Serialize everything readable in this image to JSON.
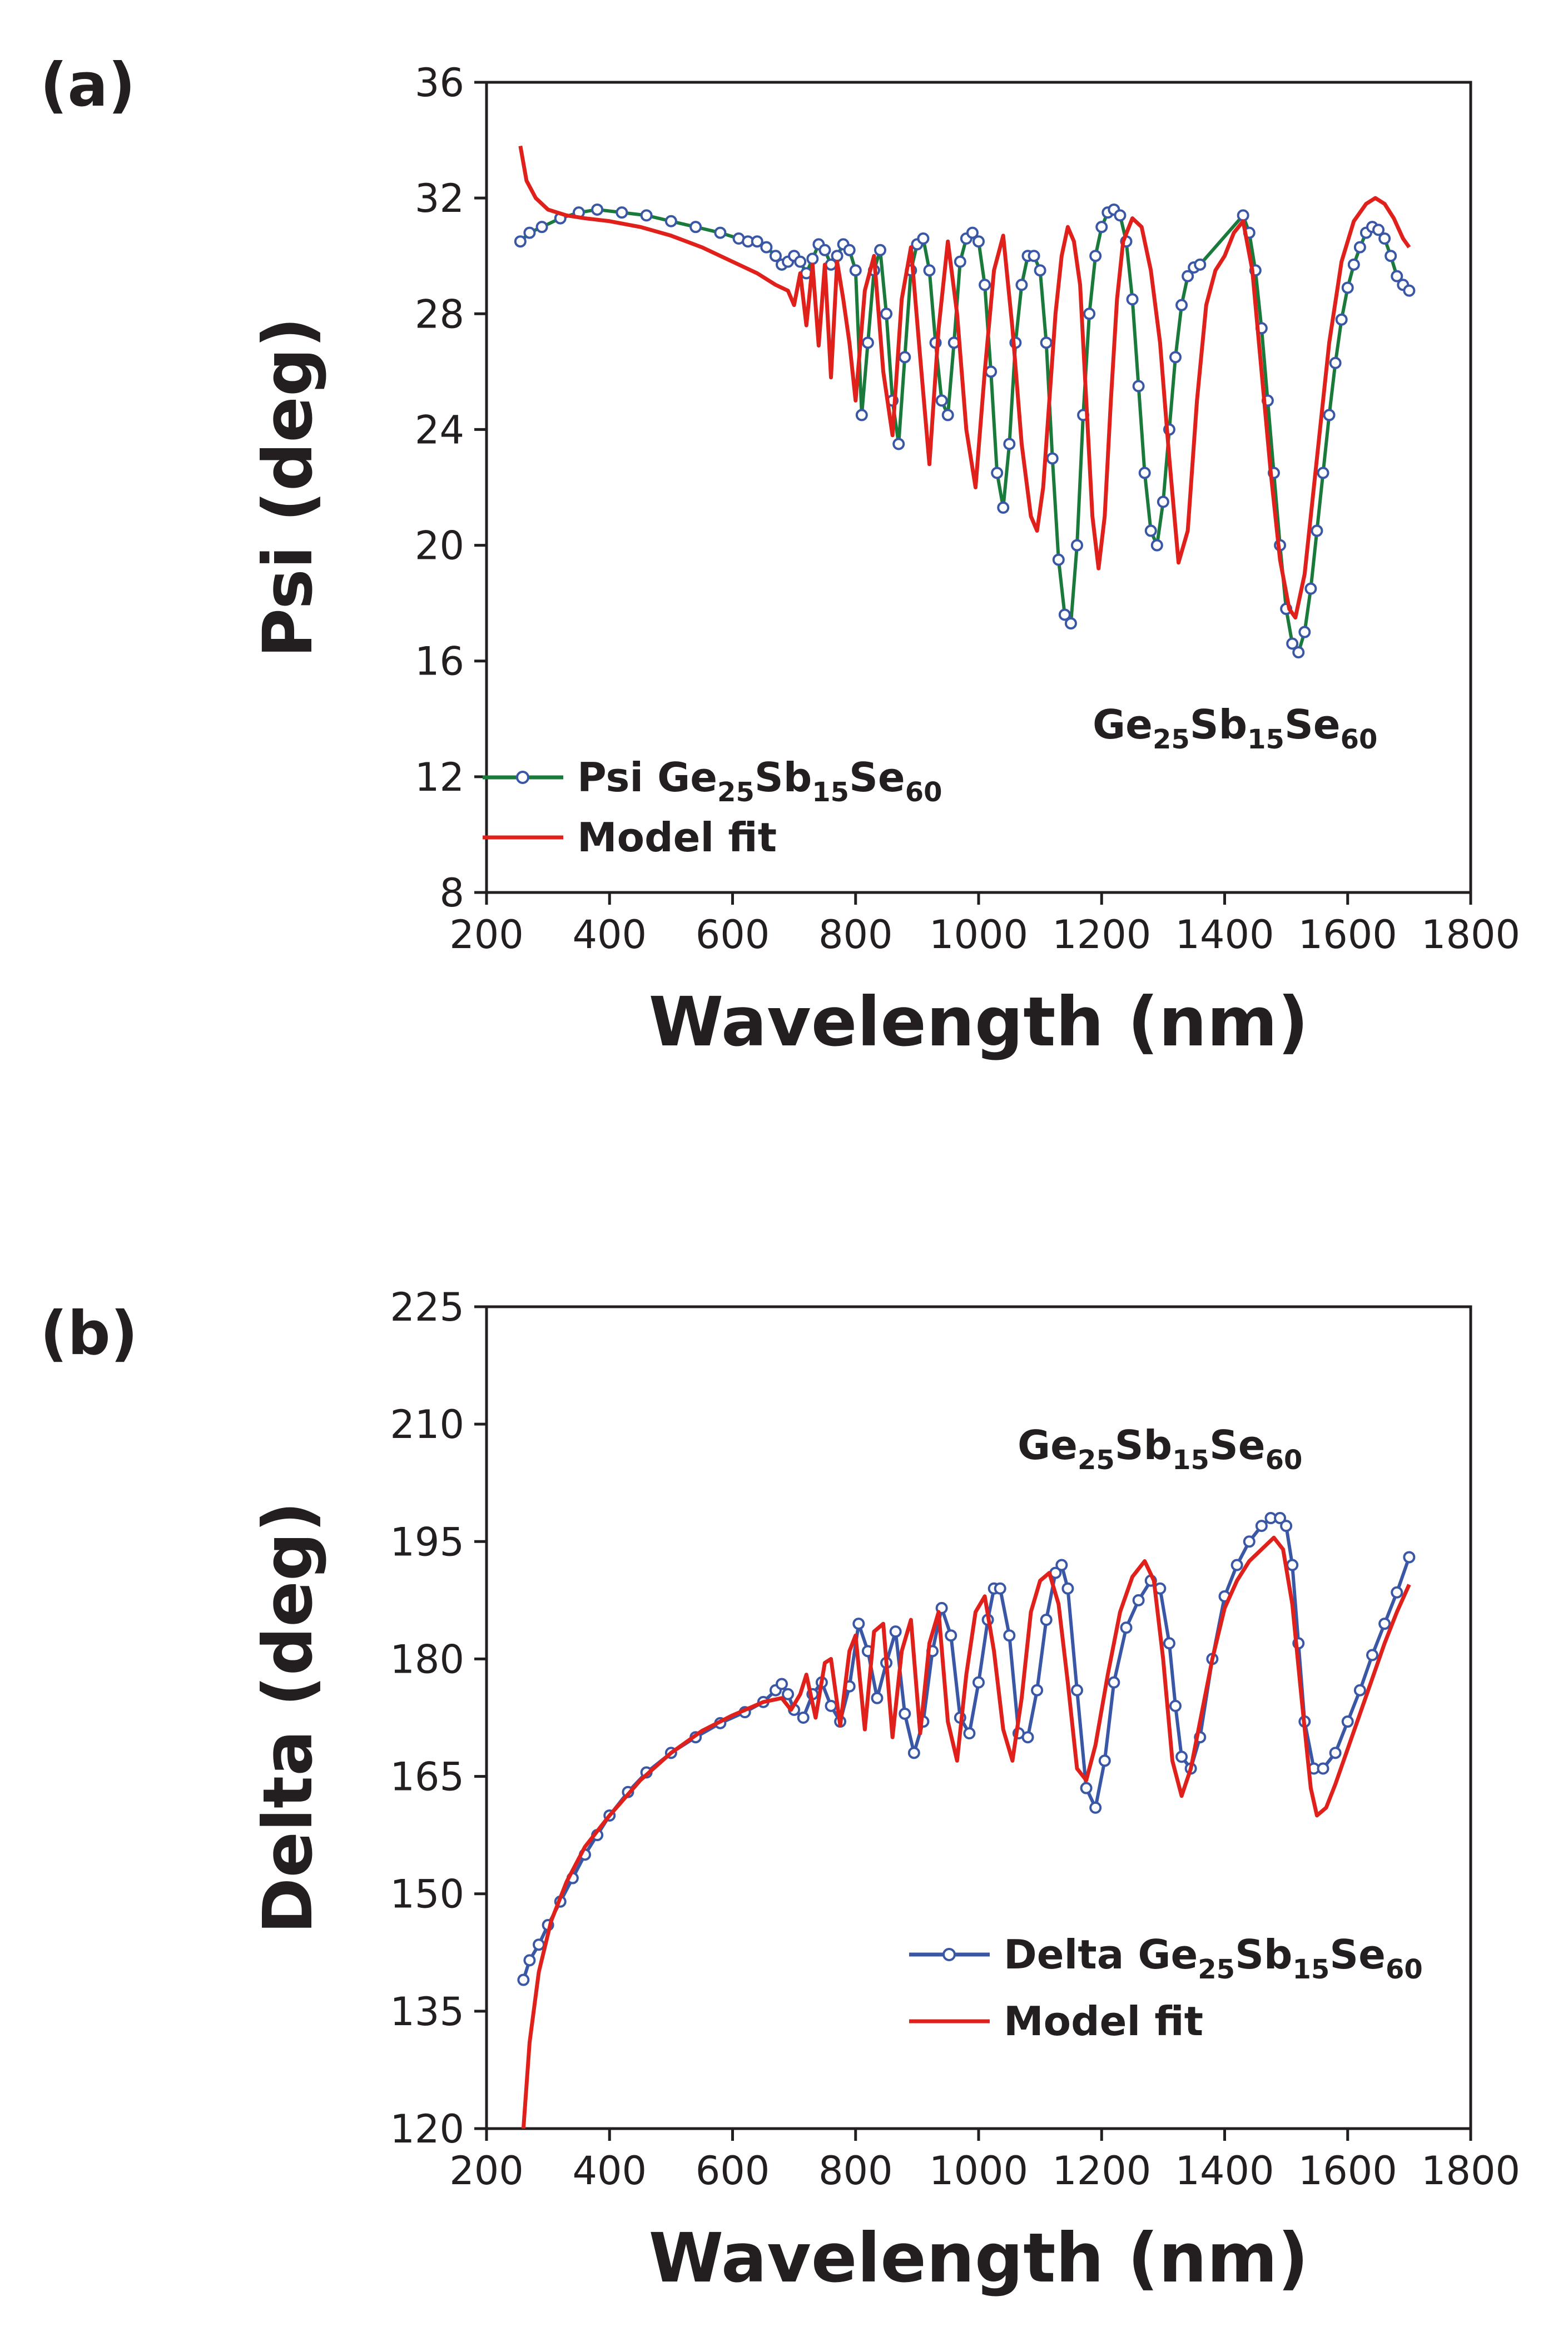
{
  "chart_data": [
    {
      "panel": "(a)",
      "type": "line",
      "xlabel": "Wavelength (nm)",
      "ylabel": "Psi (deg)",
      "xlim": [
        200,
        1800
      ],
      "ylim": [
        8,
        36
      ],
      "xticks": [
        200,
        400,
        600,
        800,
        1000,
        1200,
        1400,
        1600,
        1800
      ],
      "yticks": [
        8,
        12,
        16,
        20,
        24,
        28,
        32,
        36
      ],
      "annotation": {
        "main": "Ge",
        "parts": [
          [
            "25",
            "Sb"
          ],
          [
            "15",
            "Se"
          ],
          [
            "60",
            ""
          ]
        ]
      },
      "legend": [
        {
          "main": "Psi Ge",
          "parts": [
            [
              "25",
              "Sb"
            ],
            [
              "15",
              "Se"
            ],
            [
              "60",
              ""
            ]
          ],
          "color": "#1a7a3c",
          "marker": "#3a57a6"
        },
        {
          "main": "Model fit",
          "parts": [],
          "color": "#e0201b"
        }
      ],
      "series": [
        {
          "name": "Psi Ge25Sb15Se60",
          "color": "#1a7a3c",
          "marker_color": "#3a57a6",
          "x": [
            255,
            270,
            290,
            320,
            350,
            380,
            420,
            460,
            500,
            540,
            580,
            610,
            625,
            640,
            655,
            670,
            680,
            690,
            700,
            710,
            720,
            730,
            740,
            750,
            760,
            770,
            780,
            790,
            800,
            810,
            820,
            830,
            840,
            850,
            860,
            870,
            880,
            890,
            900,
            910,
            920,
            930,
            940,
            950,
            960,
            970,
            980,
            990,
            1000,
            1010,
            1020,
            1030,
            1040,
            1050,
            1060,
            1070,
            1080,
            1090,
            1100,
            1110,
            1120,
            1130,
            1140,
            1150,
            1160,
            1170,
            1180,
            1190,
            1200,
            1210,
            1220,
            1230,
            1240,
            1250,
            1260,
            1270,
            1280,
            1290,
            1300,
            1310,
            1320,
            1330,
            1340,
            1350,
            1360,
            1430,
            1440,
            1450,
            1460,
            1470,
            1480,
            1490,
            1500,
            1510,
            1520,
            1530,
            1540,
            1550,
            1560,
            1570,
            1580,
            1590,
            1600,
            1610,
            1620,
            1630,
            1640,
            1650,
            1660,
            1670,
            1680,
            1690,
            1700
          ],
          "y": [
            30.5,
            30.8,
            31.0,
            31.3,
            31.5,
            31.6,
            31.5,
            31.4,
            31.2,
            31.0,
            30.8,
            30.6,
            30.5,
            30.5,
            30.3,
            30.0,
            29.7,
            29.8,
            30.0,
            29.8,
            29.4,
            29.9,
            30.4,
            30.2,
            29.7,
            30.0,
            30.4,
            30.2,
            29.5,
            24.5,
            27.0,
            29.5,
            30.2,
            28.0,
            25.0,
            23.5,
            26.5,
            29.5,
            30.4,
            30.6,
            29.5,
            27.0,
            25.0,
            24.5,
            27.0,
            29.8,
            30.6,
            30.8,
            30.5,
            29.0,
            26.0,
            22.5,
            21.3,
            23.5,
            27.0,
            29.0,
            30.0,
            30.0,
            29.5,
            27.0,
            23.0,
            19.5,
            17.6,
            17.3,
            20.0,
            24.5,
            28.0,
            30.0,
            31.0,
            31.5,
            31.6,
            31.4,
            30.5,
            28.5,
            25.5,
            22.5,
            20.5,
            20.0,
            21.5,
            24.0,
            26.5,
            28.3,
            29.3,
            29.6,
            29.7,
            31.4,
            30.8,
            29.5,
            27.5,
            25.0,
            22.5,
            20.0,
            17.8,
            16.6,
            16.3,
            17.0,
            18.5,
            20.5,
            22.5,
            24.5,
            26.3,
            27.8,
            28.9,
            29.7,
            30.3,
            30.8,
            31.0,
            30.9,
            30.6,
            30.0,
            29.3,
            29.0,
            28.8
          ]
        },
        {
          "name": "Model fit",
          "color": "#e0201b",
          "x": [
            255,
            265,
            280,
            300,
            330,
            360,
            400,
            450,
            500,
            550,
            600,
            640,
            670,
            690,
            700,
            710,
            720,
            730,
            740,
            750,
            760,
            770,
            780,
            790,
            800,
            815,
            830,
            845,
            860,
            875,
            890,
            905,
            920,
            935,
            950,
            965,
            980,
            995,
            1010,
            1025,
            1040,
            1055,
            1070,
            1085,
            1095,
            1105,
            1115,
            1125,
            1135,
            1145,
            1155,
            1165,
            1175,
            1185,
            1195,
            1205,
            1215,
            1225,
            1235,
            1250,
            1265,
            1280,
            1295,
            1310,
            1325,
            1340,
            1355,
            1370,
            1385,
            1400,
            1415,
            1430,
            1445,
            1460,
            1475,
            1490,
            1505,
            1515,
            1530,
            1550,
            1570,
            1590,
            1610,
            1630,
            1645,
            1660,
            1675,
            1690,
            1700
          ],
          "y": [
            33.8,
            32.6,
            32.0,
            31.6,
            31.4,
            31.3,
            31.2,
            31.0,
            30.7,
            30.3,
            29.8,
            29.4,
            29.0,
            28.8,
            28.3,
            29.4,
            27.6,
            29.7,
            26.9,
            29.7,
            25.8,
            29.8,
            28.5,
            27.0,
            25.0,
            28.8,
            30.0,
            26.0,
            23.8,
            28.5,
            30.3,
            26.5,
            22.8,
            27.5,
            30.5,
            28.0,
            24.0,
            22.0,
            26.0,
            29.5,
            30.7,
            27.5,
            23.5,
            21.0,
            20.5,
            22.0,
            25.0,
            28.0,
            30.0,
            31.0,
            30.5,
            29.0,
            25.0,
            21.0,
            19.2,
            21.0,
            25.0,
            28.5,
            30.5,
            31.3,
            31.0,
            29.5,
            27.0,
            23.0,
            19.4,
            20.5,
            25.0,
            28.3,
            29.5,
            30.0,
            30.8,
            31.2,
            29.5,
            26.0,
            22.5,
            19.5,
            17.8,
            17.5,
            19.0,
            23.0,
            27.0,
            29.8,
            31.2,
            31.8,
            32.0,
            31.8,
            31.3,
            30.6,
            30.3
          ]
        }
      ]
    },
    {
      "panel": "(b)",
      "type": "line",
      "xlabel": "Wavelength (nm)",
      "ylabel": "Delta (deg)",
      "xlim": [
        200,
        1800
      ],
      "ylim": [
        120,
        225
      ],
      "xticks": [
        200,
        400,
        600,
        800,
        1000,
        1200,
        1400,
        1600,
        1800
      ],
      "yticks": [
        120,
        135,
        150,
        165,
        180,
        195,
        210,
        225
      ],
      "annotation": {
        "main": "Ge",
        "parts": [
          [
            "25",
            "Sb"
          ],
          [
            "15",
            "Se"
          ],
          [
            "60",
            ""
          ]
        ]
      },
      "legend": [
        {
          "main": "Delta Ge",
          "parts": [
            [
              "25",
              "Sb"
            ],
            [
              "15",
              "Se"
            ],
            [
              "60",
              ""
            ]
          ],
          "color": "#3a57a6",
          "marker": "#3a57a6"
        },
        {
          "main": "Model fit",
          "parts": [],
          "color": "#e0201b"
        }
      ],
      "series": [
        {
          "name": "Delta Ge25Sb15Se60",
          "color": "#3a57a6",
          "marker_color": "#3a57a6",
          "x": [
            260,
            270,
            285,
            300,
            320,
            340,
            360,
            380,
            400,
            430,
            460,
            500,
            540,
            580,
            620,
            650,
            670,
            680,
            690,
            700,
            715,
            730,
            745,
            760,
            775,
            790,
            805,
            820,
            835,
            850,
            865,
            880,
            895,
            910,
            925,
            940,
            955,
            970,
            985,
            1000,
            1015,
            1025,
            1035,
            1050,
            1065,
            1080,
            1095,
            1110,
            1125,
            1135,
            1145,
            1160,
            1175,
            1190,
            1205,
            1220,
            1240,
            1260,
            1280,
            1295,
            1310,
            1320,
            1330,
            1345,
            1360,
            1380,
            1400,
            1420,
            1440,
            1460,
            1475,
            1490,
            1500,
            1510,
            1520,
            1530,
            1545,
            1560,
            1580,
            1600,
            1620,
            1640,
            1660,
            1680,
            1700
          ],
          "y": [
            139.0,
            141.5,
            143.5,
            146.0,
            149.0,
            152.0,
            155.0,
            157.5,
            160.0,
            163.0,
            165.5,
            168.0,
            170.0,
            171.8,
            173.2,
            174.5,
            176.0,
            176.8,
            175.5,
            173.5,
            172.5,
            175.5,
            177.0,
            174.0,
            172.0,
            176.5,
            184.5,
            181.0,
            175.0,
            179.5,
            183.5,
            173.0,
            168.0,
            172.0,
            181.0,
            186.5,
            183.0,
            172.5,
            170.5,
            177.0,
            185.0,
            189.0,
            189.0,
            183.0,
            170.5,
            170.0,
            176.0,
            185.0,
            191.0,
            192.0,
            189.0,
            176.0,
            163.5,
            161.0,
            167.0,
            177.0,
            184.0,
            187.5,
            190.0,
            189.0,
            182.0,
            174.0,
            167.5,
            166.0,
            170.0,
            180.0,
            188.0,
            192.0,
            195.0,
            197.0,
            198.0,
            198.0,
            197.0,
            192.0,
            182.0,
            172.0,
            166.0,
            166.0,
            168.0,
            172.0,
            176.0,
            180.5,
            184.5,
            188.5,
            193.0
          ]
        },
        {
          "name": "Model fit",
          "color": "#e0201b",
          "x": [
            260,
            270,
            285,
            305,
            330,
            360,
            400,
            450,
            500,
            550,
            600,
            650,
            680,
            695,
            710,
            720,
            735,
            750,
            760,
            775,
            790,
            800,
            815,
            830,
            845,
            860,
            875,
            890,
            905,
            920,
            935,
            950,
            965,
            980,
            995,
            1010,
            1025,
            1040,
            1055,
            1070,
            1085,
            1100,
            1115,
            1130,
            1145,
            1160,
            1175,
            1190,
            1210,
            1230,
            1250,
            1270,
            1285,
            1300,
            1315,
            1330,
            1345,
            1360,
            1380,
            1400,
            1420,
            1440,
            1460,
            1480,
            1495,
            1510,
            1525,
            1540,
            1550,
            1565,
            1580,
            1600,
            1620,
            1640,
            1660,
            1680,
            1700
          ],
          "y": [
            120.0,
            131.0,
            140.0,
            146.5,
            151.5,
            156.0,
            160.0,
            164.5,
            168.0,
            170.8,
            172.8,
            174.5,
            175.0,
            173.5,
            175.5,
            178.0,
            172.5,
            179.5,
            180.0,
            171.5,
            181.0,
            183.0,
            171.0,
            183.5,
            184.5,
            170.0,
            181.0,
            185.0,
            170.5,
            182.0,
            186.0,
            172.0,
            167.0,
            178.0,
            186.0,
            188.0,
            181.0,
            171.0,
            167.0,
            175.0,
            186.0,
            190.0,
            191.0,
            187.0,
            177.0,
            166.0,
            164.5,
            169.0,
            178.0,
            186.0,
            190.5,
            192.5,
            190.0,
            180.0,
            167.0,
            162.5,
            166.0,
            172.0,
            180.0,
            186.5,
            190.0,
            192.5,
            194.0,
            195.5,
            194.0,
            187.0,
            175.0,
            163.5,
            160.0,
            161.0,
            164.0,
            168.5,
            173.0,
            177.5,
            182.0,
            186.0,
            189.5
          ]
        }
      ]
    }
  ]
}
